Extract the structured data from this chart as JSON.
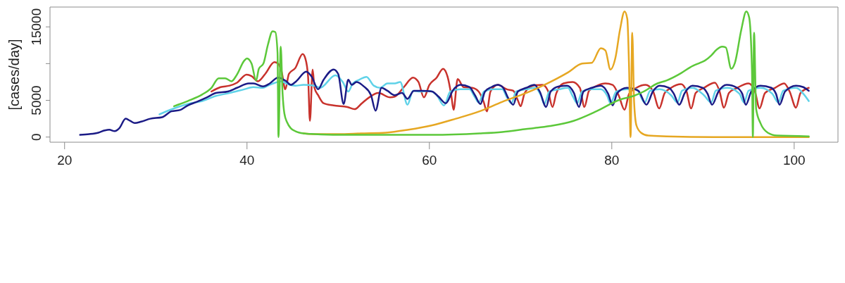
{
  "chart_data": {
    "type": "line",
    "ylabel": "[cases/day]",
    "xlim": [
      18.4,
      104.8
    ],
    "xticks": [
      20,
      40,
      60,
      80,
      100
    ],
    "ylim": [
      -700,
      17700
    ],
    "yticks": [
      0,
      5000,
      {
        "value": 10000,
        "label": null
      },
      15000
    ],
    "series": [
      {
        "color": "#c8322c",
        "x": [
          36.1,
          37.1,
          38.1,
          38.9,
          39.95,
          40.5,
          41.2,
          42.0,
          43.0,
          43.4,
          43.8,
          44.2,
          44.6,
          45.3,
          46.1,
          46.4,
          46.7,
          46.9,
          47.2,
          47.4,
          47.8,
          48.4,
          49.5,
          51.0,
          51.8,
          52.6,
          53.4,
          54.4,
          55.7,
          56.2,
          57.2,
          58.2,
          58.8,
          59.4,
          60.0,
          60.8,
          61.5,
          62.0,
          62.4,
          62.65,
          63.1,
          63.75,
          64.7,
          65.4,
          65.95,
          66.3,
          66.7,
          67.5,
          68.5,
          69.2,
          69.7,
          70.0,
          70.45,
          71.35,
          72.4,
          73.0,
          73.5,
          73.9,
          74.7,
          75.7,
          76.5,
          77.0,
          77.5,
          78.4,
          79.3,
          80.1,
          80.75,
          81.4,
          81.9,
          82.7,
          83.7,
          84.5,
          85.2,
          85.8,
          86.5,
          87.6,
          88.2,
          88.7,
          89.2,
          90.1,
          91.3,
          91.8,
          92.3,
          92.85,
          93.75,
          95.0,
          95.7,
          96.2,
          96.8,
          97.9,
          98.9,
          99.5,
          100.2,
          100.7,
          101.6
        ],
        "values": [
          6200,
          6800,
          7000,
          7400,
          8500,
          8300,
          7600,
          8600,
          10200,
          10000,
          8900,
          6500,
          8600,
          9400,
          11300,
          10700,
          8200,
          2200,
          9200,
          6700,
          5700,
          4600,
          4300,
          4100,
          3800,
          4600,
          5400,
          6000,
          5400,
          5500,
          6800,
          8100,
          7500,
          5400,
          7100,
          8100,
          9300,
          8200,
          5700,
          3700,
          7900,
          6800,
          6700,
          6200,
          4800,
          3500,
          6200,
          7100,
          6500,
          6300,
          5000,
          4200,
          6000,
          7000,
          7100,
          6300,
          4100,
          5900,
          7300,
          7500,
          6700,
          4100,
          6300,
          7000,
          7300,
          7100,
          5700,
          3700,
          5900,
          6700,
          7100,
          6300,
          3900,
          6000,
          6700,
          7200,
          6200,
          3900,
          6000,
          6700,
          7400,
          6300,
          4000,
          6000,
          6700,
          7300,
          6200,
          3900,
          6000,
          6700,
          7300,
          6200,
          4000,
          6000,
          6700
        ]
      },
      {
        "color": "#5fd2e8",
        "x": [
          30.4,
          32.0,
          33.5,
          35.1,
          36.6,
          38.1,
          39.7,
          40.7,
          41.75,
          42.3,
          43.8,
          44.3,
          45.3,
          46.2,
          47.4,
          48.0,
          49.7,
          50.5,
          51.1,
          51.6,
          52.3,
          53.1,
          53.9,
          54.6,
          55.4,
          56.2,
          56.8,
          57.6,
          58.2,
          59.0,
          60.0,
          60.8,
          61.6,
          62.3,
          63.4,
          64.4,
          65.0,
          65.4,
          66.0,
          67.0,
          68.0,
          68.5,
          69.0,
          69.5,
          70.6,
          71.6,
          72.25,
          72.6,
          73.15,
          74.2,
          75.2,
          75.7,
          76.2,
          76.75,
          77.8,
          78.8,
          79.5,
          79.85,
          80.5,
          81.65,
          82.7,
          83.6,
          84.2,
          85.25,
          86.5,
          87.2,
          87.7,
          88.85,
          90.1,
          90.9,
          91.4,
          92.7,
          94.0,
          94.5,
          95.0,
          96.3,
          97.6,
          98.25,
          98.8,
          100.2,
          101.0,
          101.6
        ],
        "values": [
          3100,
          3900,
          4500,
          4900,
          5600,
          6000,
          6500,
          6800,
          6700,
          7000,
          7600,
          7300,
          7000,
          7100,
          7000,
          6700,
          8400,
          7500,
          6200,
          7300,
          7800,
          8200,
          7000,
          6700,
          7300,
          7300,
          7500,
          4400,
          6300,
          6200,
          6300,
          5700,
          4300,
          6200,
          6500,
          6500,
          5400,
          4700,
          6200,
          6500,
          6500,
          5400,
          4600,
          6200,
          6500,
          6700,
          5600,
          4500,
          6200,
          6500,
          6700,
          5600,
          4600,
          6200,
          6500,
          6500,
          5600,
          4600,
          6200,
          6500,
          6500,
          4700,
          6300,
          6500,
          5700,
          4700,
          6300,
          6700,
          5700,
          4700,
          6300,
          6700,
          5900,
          4700,
          6300,
          6700,
          5900,
          4700,
          6300,
          6700,
          5900,
          4900
        ]
      },
      {
        "color": "#1b1b86",
        "x": [
          21.7,
          22.7,
          23.7,
          24.4,
          24.9,
          25.5,
          26.0,
          26.7,
          27.2,
          27.7,
          28.4,
          29.4,
          30.7,
          31.7,
          32.7,
          33.5,
          34.5,
          35.6,
          36.6,
          37.9,
          38.9,
          40.2,
          40.7,
          41.75,
          42.5,
          43.4,
          44.3,
          44.8,
          45.4,
          46.5,
          47.1,
          47.8,
          48.4,
          49.5,
          50.0,
          50.6,
          51.1,
          51.5,
          52.0,
          52.8,
          53.6,
          54.1,
          54.75,
          55.4,
          56.2,
          57.0,
          57.6,
          58.3,
          59.25,
          60.3,
          61.0,
          61.8,
          62.6,
          63.4,
          64.4,
          65.0,
          65.6,
          66.1,
          66.8,
          67.5,
          68.1,
          68.6,
          69.2,
          69.7,
          70.6,
          71.5,
          72.1,
          72.8,
          73.3,
          74.2,
          75.1,
          75.85,
          76.4,
          76.9,
          77.8,
          78.8,
          79.6,
          80.1,
          80.6,
          81.65,
          82.9,
          83.8,
          84.5,
          85.25,
          86.3,
          86.8,
          87.4,
          88.0,
          88.85,
          90.0,
          90.5,
          91.0,
          91.7,
          92.6,
          93.75,
          94.3,
          94.7,
          95.3,
          96.3,
          97.5,
          98.0,
          98.4,
          99.0,
          100.2,
          101.0,
          101.6
        ],
        "values": [
          300,
          400,
          600,
          900,
          1000,
          800,
          1200,
          2500,
          2200,
          1900,
          2100,
          2500,
          2700,
          3500,
          3700,
          4300,
          4800,
          5400,
          6000,
          6200,
          6700,
          7300,
          7300,
          6900,
          7300,
          8100,
          7600,
          7100,
          7600,
          8900,
          8200,
          6500,
          7800,
          9200,
          8600,
          4500,
          7800,
          7100,
          7500,
          6900,
          5700,
          3600,
          6700,
          6300,
          5700,
          6000,
          5200,
          6300,
          6300,
          6200,
          5500,
          4600,
          6400,
          7100,
          6800,
          5700,
          4500,
          6200,
          6800,
          7100,
          6700,
          5400,
          4400,
          6200,
          6700,
          7100,
          6200,
          4100,
          6200,
          6900,
          7000,
          6000,
          4100,
          6200,
          6700,
          7000,
          5900,
          4300,
          6000,
          6700,
          6300,
          4400,
          6200,
          7000,
          6700,
          5900,
          4400,
          6000,
          7000,
          6700,
          5900,
          4400,
          6200,
          7100,
          6700,
          5900,
          4400,
          6200,
          7000,
          6700,
          5900,
          4400,
          6200,
          7000,
          6800,
          6300
        ]
      },
      {
        "color": "#e6a722",
        "x": [
          46.2,
          47.4,
          50.0,
          52.5,
          55.2,
          57.7,
          60.3,
          62.9,
          65.5,
          68.0,
          70.6,
          72.6,
          75.2,
          76.75,
          77.8,
          78.8,
          79.3,
          79.85,
          80.4,
          80.9,
          81.4,
          81.7,
          81.9,
          82.06,
          82.24,
          82.45,
          82.7,
          83.2,
          84.0,
          86.0,
          91.2,
          101.6
        ],
        "values": [
          500,
          400,
          400,
          500,
          600,
          1000,
          1600,
          2500,
          3500,
          4800,
          6000,
          7100,
          8800,
          10000,
          10100,
          12100,
          11800,
          9200,
          10800,
          14600,
          17100,
          16100,
          9200,
          0,
          14200,
          4700,
          1600,
          600,
          200,
          100,
          0,
          0
        ]
      },
      {
        "color": "#5cc83a",
        "x": [
          32.0,
          33.5,
          35.1,
          36.1,
          36.9,
          37.6,
          38.3,
          38.9,
          39.7,
          40.0,
          40.5,
          41.0,
          41.3,
          41.8,
          42.3,
          42.8,
          43.1,
          43.35,
          43.45,
          43.7,
          43.9,
          44.1,
          44.4,
          44.8,
          45.3,
          46.2,
          47.4,
          50.0,
          55.0,
          60.3,
          65.5,
          68.0,
          70.6,
          73.2,
          75.8,
          78.3,
          80.9,
          82.4,
          83.5,
          85.0,
          86.0,
          87.6,
          88.6,
          89.65,
          90.2,
          90.9,
          91.5,
          92.1,
          92.5,
          93.1,
          93.5,
          94.2,
          94.75,
          95.06,
          95.37,
          95.47,
          95.6,
          95.83,
          96.3,
          97.1,
          98.1,
          101.6
        ],
        "values": [
          4200,
          4900,
          5800,
          6700,
          8000,
          8000,
          7600,
          8500,
          10400,
          10700,
          10000,
          7700,
          9300,
          10000,
          12600,
          14400,
          14300,
          11500,
          0,
          12300,
          6000,
          3200,
          2000,
          1200,
          800,
          500,
          400,
          300,
          300,
          300,
          500,
          700,
          1100,
          1500,
          2200,
          3500,
          5100,
          5600,
          6200,
          7300,
          7700,
          8700,
          9500,
          10100,
          10400,
          11100,
          11900,
          12300,
          12200,
          9300,
          10100,
          14600,
          17100,
          16300,
          9200,
          0,
          14200,
          3800,
          1900,
          600,
          200,
          100
        ]
      }
    ]
  }
}
